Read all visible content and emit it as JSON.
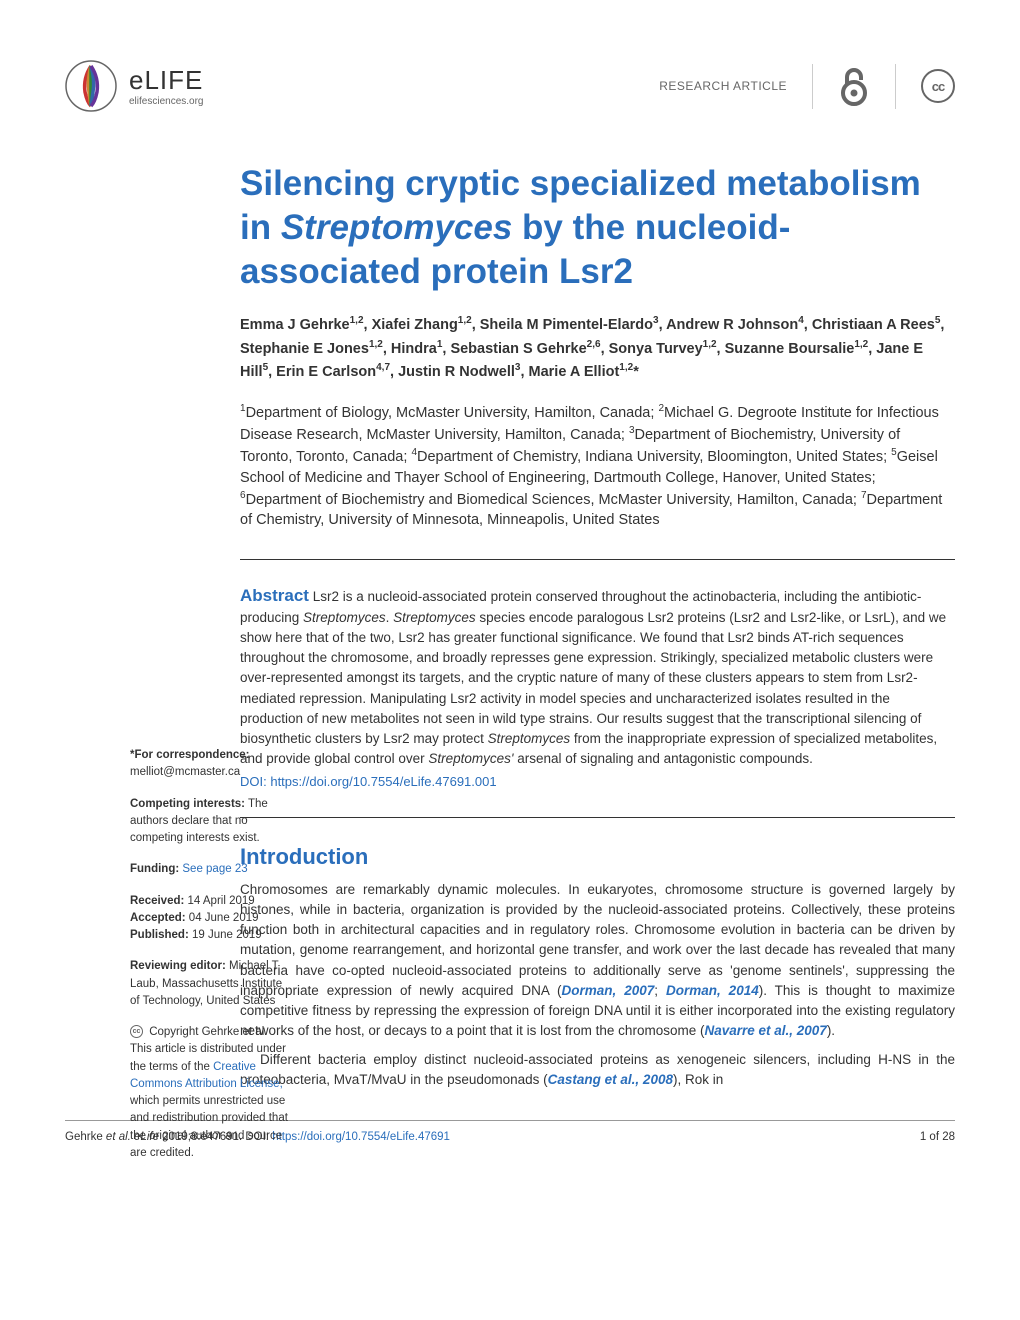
{
  "header": {
    "logo_name": "eLIFE",
    "logo_url": "elifesciences.org",
    "article_type": "RESEARCH ARTICLE",
    "cc_label": "cc"
  },
  "title": {
    "part1": "Silencing cryptic specialized metabolism in ",
    "italic_part": "Streptomyces",
    "part2": " by the nucleoid-associated protein Lsr2"
  },
  "authors_html": "Emma J Gehrke<sup>1,2</sup>, Xiafei Zhang<sup>1,2</sup>, Sheila M Pimentel-Elardo<sup>3</sup>, Andrew R Johnson<sup>4</sup>, Christiaan A Rees<sup>5</sup>, Stephanie E Jones<sup>1,2</sup>, Hindra<sup>1</sup>, Sebastian S Gehrke<sup>2,6</sup>, Sonya Turvey<sup>1,2</sup>, Suzanne Boursalie<sup>1,2</sup>, Jane E Hill<sup>5</sup>, Erin E Carlson<sup>4,7</sup>, Justin R Nodwell<sup>3</sup>, Marie A Elliot<sup>1,2</sup>*",
  "affiliations_html": "<sup>1</sup>Department of Biology, McMaster University, Hamilton, Canada; <sup>2</sup>Michael G. Degroote Institute for Infectious Disease Research, McMaster University, Hamilton, Canada; <sup>3</sup>Department of Biochemistry, University of Toronto, Toronto, Canada; <sup>4</sup>Department of Chemistry, Indiana University, Bloomington, United States; <sup>5</sup>Geisel School of Medicine and Thayer School of Engineering, Dartmouth College, Hanover, United States; <sup>6</sup>Department of Biochemistry and Biomedical Sciences, McMaster University, Hamilton, Canada; <sup>7</sup>Department of Chemistry, University of Minnesota, Minneapolis, United States",
  "abstract": {
    "label": "Abstract",
    "text_html": " Lsr2 is a nucleoid-associated protein conserved throughout the actinobacteria, including the antibiotic-producing <span class=\"italic\">Streptomyces</span>. <span class=\"italic\">Streptomyces</span> species encode paralogous Lsr2 proteins (Lsr2 and Lsr2-like, or LsrL), and we show here that of the two, Lsr2 has greater functional significance. We found that Lsr2 binds AT-rich sequences throughout the chromosome, and broadly represses gene expression. Strikingly, specialized metabolic clusters were over-represented amongst its targets, and the cryptic nature of many of these clusters appears to stem from Lsr2-mediated repression. Manipulating Lsr2 activity in model species and uncharacterized isolates resulted in the production of new metabolites not seen in wild type strains. Our results suggest that the transcriptional silencing of biosynthetic clusters by Lsr2 may protect <span class=\"italic\">Streptomyces</span> from the inappropriate expression of specialized metabolites, and provide global control over <span class=\"italic\">Streptomyces'</span> arsenal of signaling and antagonistic compounds.",
    "doi_label": "DOI: ",
    "doi_link": "https://doi.org/10.7554/eLife.47691.001"
  },
  "introduction": {
    "heading": "Introduction",
    "p1_html": "Chromosomes are remarkably dynamic molecules. In eukaryotes, chromosome structure is governed largely by histones, while in bacteria, organization is provided by the nucleoid-associated proteins. Collectively, these proteins function both in architectural capacities and in regulatory roles. Chromosome evolution in bacteria can be driven by mutation, genome rearrangement, and horizontal gene transfer, and work over the last decade has revealed that many bacteria have co-opted nucleoid-associated proteins to additionally serve as 'genome sentinels', suppressing the inappropriate expression of newly acquired DNA (<span class=\"bold-ref\">Dorman, 2007</span>; <span class=\"bold-ref\">Dorman, 2014</span>). This is thought to maximize competitive fitness by repressing the expression of foreign DNA until it is either incorporated into the existing regulatory networks of the host, or decays to a point that it is lost from the chromosome (<span class=\"bold-ref\">Navarre et al., 2007</span>).",
    "p2_html": "Different bacteria employ distinct nucleoid-associated proteins as xenogeneic silencers, including H-NS in the proteobacteria, MvaT/MvaU in the pseudomonads (<span class=\"bold-ref\">Castang et al., 2008</span>), Rok in"
  },
  "sidebar": {
    "correspondence": {
      "label": "*For correspondence:",
      "email": "melliot@mcmaster.ca"
    },
    "competing": {
      "label": "Competing interests:",
      "text": " The authors declare that no competing interests exist."
    },
    "funding": {
      "label": "Funding:",
      "link": " See page 23"
    },
    "dates": {
      "received_label": "Received:",
      "received": " 14 April 2019",
      "accepted_label": "Accepted:",
      "accepted": " 04 June 2019",
      "published_label": "Published:",
      "published": " 19 June 2019"
    },
    "reviewing": {
      "label": "Reviewing editor:",
      "text": " Michael T Laub, Massachusetts Institute of Technology, United States"
    },
    "copyright": {
      "text1": " Copyright Gehrke et al. This article is distributed under the terms of the ",
      "link": "Creative Commons Attribution License,",
      "text2": " which permits unrestricted use and redistribution provided that the original author and source are credited."
    }
  },
  "footer": {
    "citation_html": "Gehrke <span class=\"italic\">et al. eLife</span> 2019;8:e47691. ",
    "doi_label": "DOI: ",
    "doi_link": "https://doi.org/10.7554/eLife.47691",
    "page": "1 of 28"
  },
  "colors": {
    "primary_blue": "#2a6ebb",
    "text_dark": "#333333",
    "text_gray": "#666666",
    "border_gray": "#cccccc"
  },
  "logo_colors": [
    "#cc3333",
    "#cc8833",
    "#338833",
    "#3366aa",
    "#663399"
  ]
}
